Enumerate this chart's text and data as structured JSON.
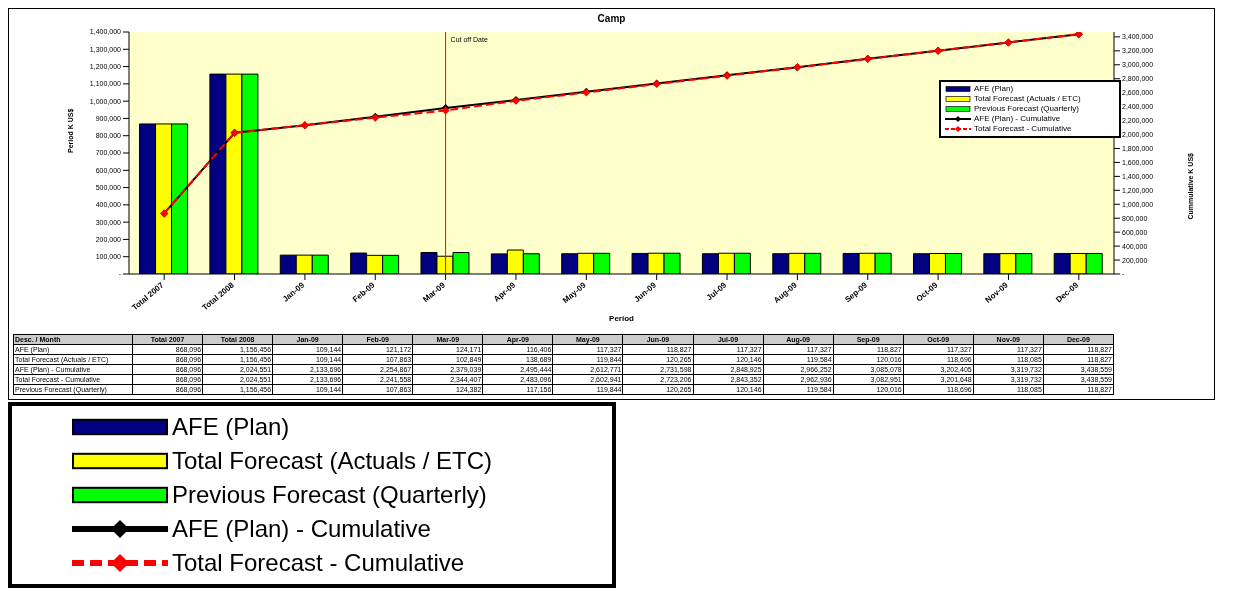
{
  "chart_data": {
    "type": "bar",
    "title": "Camp",
    "xlabel": "Period",
    "ylabel": "Period K US$",
    "y2label": "Cummulative K US$",
    "categories": [
      "Total 2007",
      "Total 2008",
      "Jan-09",
      "Feb-09",
      "Mar-09",
      "Apr-09",
      "May-09",
      "Jun-09",
      "Jul-09",
      "Aug-09",
      "Sep-09",
      "Oct-09",
      "Nov-09",
      "Dec-09"
    ],
    "series": [
      {
        "name": "AFE (Plan)",
        "color": "#000080",
        "values": [
          868096,
          1156456,
          109144,
          121172,
          124171,
          116406,
          117327,
          118827,
          117327,
          117327,
          118827,
          117327,
          117327,
          118827
        ],
        "value_labels": [
          "868,096",
          "1,156,456",
          "109,144",
          "121,172",
          "124,171",
          "116,406",
          "117,327",
          "118,827",
          "117,327",
          "117,327",
          "118,827",
          "117,327",
          "117,327",
          "118,827"
        ]
      },
      {
        "name": "Total Forecast (Actuals / ETC)",
        "color": "#ffff00",
        "values": [
          868096,
          1156456,
          109144,
          107863,
          102849,
          138689,
          119844,
          120265,
          120146,
          119584,
          120016,
          118696,
          118085,
          118827
        ],
        "value_labels": [
          "868,096",
          "1,156,456",
          "109,144",
          "107,863",
          "102,849",
          "138,689",
          "119,844",
          "120,265",
          "120,146",
          "119,584",
          "120,016",
          "118,696",
          "118,085",
          "118,827"
        ]
      },
      {
        "name": "Previous Forecast (Quarterly)",
        "color": "#00ff00",
        "values": [
          868096,
          1156456,
          109144,
          107863,
          124382,
          117156,
          119844,
          120265,
          120146,
          119584,
          120016,
          118696,
          118085,
          118827
        ],
        "value_labels": [
          "868,096",
          "1,156,456",
          "109,144",
          "107,863",
          "124,382",
          "117,156",
          "119,844",
          "120,265",
          "120,146",
          "119,584",
          "120,016",
          "118,696",
          "118,085",
          "118,827"
        ]
      },
      {
        "name": "AFE (Plan) - Cumulative",
        "type": "line",
        "axis": "y2",
        "color": "#000000",
        "line_style": "solid",
        "values": [
          868096,
          2024551,
          2133696,
          2254867,
          2379039,
          2495444,
          2612771,
          2731598,
          2848925,
          2966252,
          3085078,
          3202405,
          3319732,
          3438559
        ],
        "value_labels": [
          "868,096",
          "2,024,551",
          "2,133,696",
          "2,254,867",
          "2,379,039",
          "2,495,444",
          "2,612,771",
          "2,731,598",
          "2,848,925",
          "2,966,252",
          "3,085,078",
          "3,202,405",
          "3,319,732",
          "3,438,559"
        ]
      },
      {
        "name": "Total Forecast - Cumulative",
        "type": "line",
        "axis": "y2",
        "color": "#ff0000",
        "line_style": "dashed",
        "values": [
          868096,
          2024551,
          2133696,
          2241558,
          2344407,
          2483096,
          2602941,
          2723206,
          2843352,
          2962936,
          3082951,
          3201648,
          3319732,
          3438559
        ],
        "value_labels": [
          "868,096",
          "2,024,551",
          "2,133,696",
          "2,241,558",
          "2,344,407",
          "2,483,096",
          "2,602,941",
          "2,723,206",
          "2,843,352",
          "2,962,936",
          "3,082,951",
          "3,201,648",
          "3,319,732",
          "3,438,559"
        ]
      }
    ],
    "ylim": [
      0,
      1400000
    ],
    "yticks": [
      {
        "value": 0,
        "label": "-"
      },
      {
        "value": 100000,
        "label": "100,000"
      },
      {
        "value": 200000,
        "label": "200,000"
      },
      {
        "value": 300000,
        "label": "300,000"
      },
      {
        "value": 400000,
        "label": "400,000"
      },
      {
        "value": 500000,
        "label": "500,000"
      },
      {
        "value": 600000,
        "label": "600,000"
      },
      {
        "value": 700000,
        "label": "700,000"
      },
      {
        "value": 800000,
        "label": "800,000"
      },
      {
        "value": 900000,
        "label": "900,000"
      },
      {
        "value": 1000000,
        "label": "1,000,000"
      },
      {
        "value": 1100000,
        "label": "1,100,000"
      },
      {
        "value": 1200000,
        "label": "1,200,000"
      },
      {
        "value": 1300000,
        "label": "1,300,000"
      },
      {
        "value": 1400000,
        "label": "1,400,000"
      }
    ],
    "y2lim": [
      0,
      3470000
    ],
    "y2ticks": [
      {
        "value": 0,
        "label": "-"
      },
      {
        "value": 200000,
        "label": "200,000"
      },
      {
        "value": 400000,
        "label": "400,000"
      },
      {
        "value": 600000,
        "label": "600,000"
      },
      {
        "value": 800000,
        "label": "800,000"
      },
      {
        "value": 1000000,
        "label": "1,000,000"
      },
      {
        "value": 1200000,
        "label": "1,200,000"
      },
      {
        "value": 1400000,
        "label": "1,400,000"
      },
      {
        "value": 1600000,
        "label": "1,600,000"
      },
      {
        "value": 1800000,
        "label": "1,800,000"
      },
      {
        "value": 2000000,
        "label": "2,000,000"
      },
      {
        "value": 2200000,
        "label": "2,200,000"
      },
      {
        "value": 2400000,
        "label": "2,400,000"
      },
      {
        "value": 2600000,
        "label": "2,600,000"
      },
      {
        "value": 2800000,
        "label": "2,800,000"
      },
      {
        "value": 3000000,
        "label": "3,000,000"
      },
      {
        "value": 3200000,
        "label": "3,200,000"
      },
      {
        "value": 3400000,
        "label": "3,400,000"
      }
    ],
    "ref_lines": [
      {
        "axis": "x",
        "value": "Mar-09",
        "label": "Cut off Date",
        "color": "#ff0000"
      }
    ],
    "annotations": [
      "Desc. / Month"
    ],
    "marker": "diamond",
    "grid": false,
    "legend": "top right"
  }
}
